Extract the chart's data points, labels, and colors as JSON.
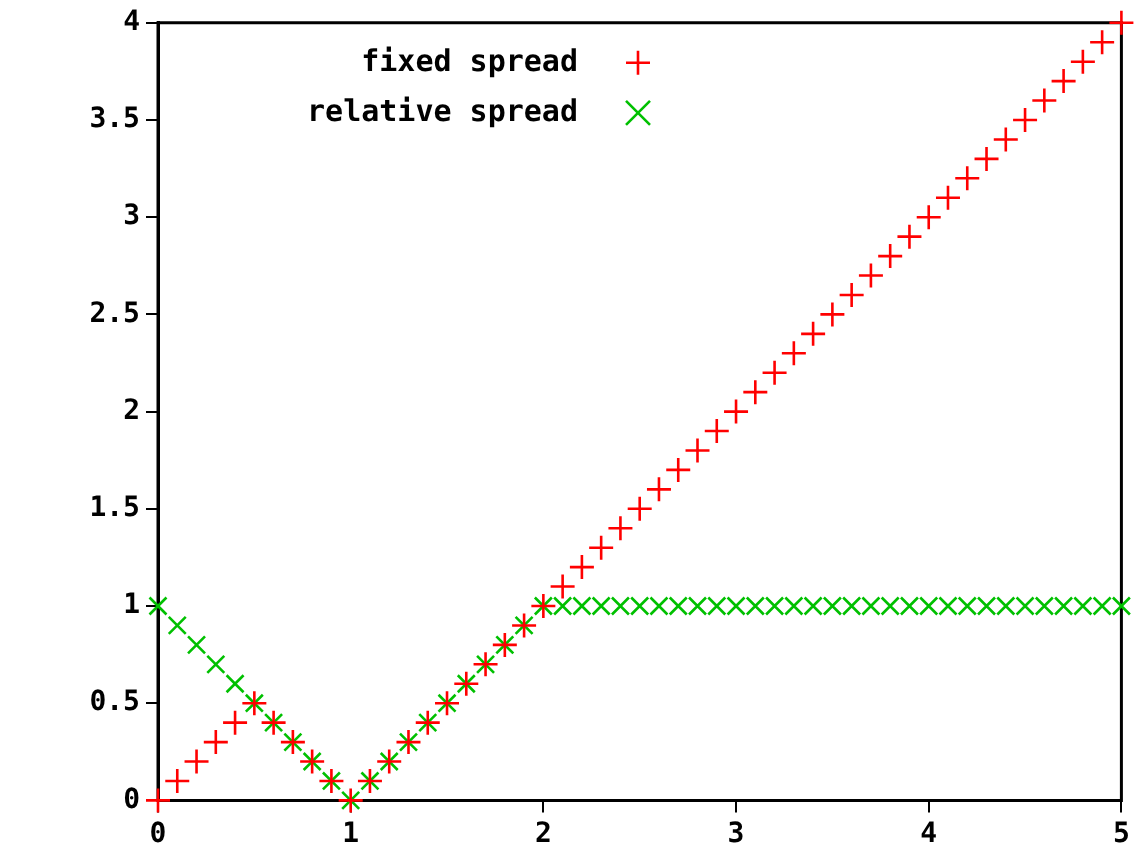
{
  "chart_data": {
    "type": "scatter",
    "x": [
      0,
      0.1,
      0.2,
      0.3,
      0.4,
      0.5,
      0.6,
      0.7,
      0.8,
      0.9,
      1,
      1.1,
      1.2,
      1.3,
      1.4,
      1.5,
      1.6,
      1.7,
      1.8,
      1.9,
      2,
      2.1,
      2.2,
      2.3,
      2.4,
      2.5,
      2.6,
      2.7,
      2.8,
      2.9,
      3,
      3.1,
      3.2,
      3.3,
      3.4,
      3.5,
      3.6,
      3.7,
      3.8,
      3.9,
      4,
      4.1,
      4.2,
      4.3,
      4.4,
      4.5,
      4.6,
      4.7,
      4.8,
      4.9,
      5
    ],
    "series": [
      {
        "name": "fixed spread",
        "color": "#ff0000",
        "marker": "plus",
        "values": [
          0,
          0.1,
          0.2,
          0.3,
          0.4,
          0.5,
          0.4,
          0.3,
          0.2,
          0.1,
          0,
          0.1,
          0.2,
          0.3,
          0.4,
          0.5,
          0.6,
          0.7,
          0.8,
          0.9,
          1,
          1.1,
          1.2,
          1.3,
          1.4,
          1.5,
          1.6,
          1.7,
          1.8,
          1.9,
          2,
          2.1,
          2.2,
          2.3,
          2.4,
          2.5,
          2.6,
          2.7,
          2.8,
          2.9,
          3,
          3.1,
          3.2,
          3.3,
          3.4,
          3.5,
          3.6,
          3.7,
          3.8,
          3.9,
          4
        ]
      },
      {
        "name": "relative spread",
        "color": "#00c000",
        "marker": "cross",
        "values": [
          1,
          0.9,
          0.8,
          0.7,
          0.6,
          0.5,
          0.4,
          0.3,
          0.2,
          0.1,
          0,
          0.1,
          0.2,
          0.3,
          0.4,
          0.5,
          0.6,
          0.7,
          0.8,
          0.9,
          1,
          1,
          1,
          1,
          1,
          1,
          1,
          1,
          1,
          1,
          1,
          1,
          1,
          1,
          1,
          1,
          1,
          1,
          1,
          1,
          1,
          1,
          1,
          1,
          1,
          1,
          1,
          1,
          1,
          1,
          1
        ]
      }
    ],
    "xlim": [
      0,
      5
    ],
    "xticks": [
      0,
      1,
      2,
      3,
      4,
      5
    ],
    "ylim": [
      0,
      4
    ],
    "yticks": [
      0,
      0.5,
      1,
      1.5,
      2,
      2.5,
      3,
      3.5,
      4
    ],
    "grid": false,
    "legend": "top left"
  }
}
